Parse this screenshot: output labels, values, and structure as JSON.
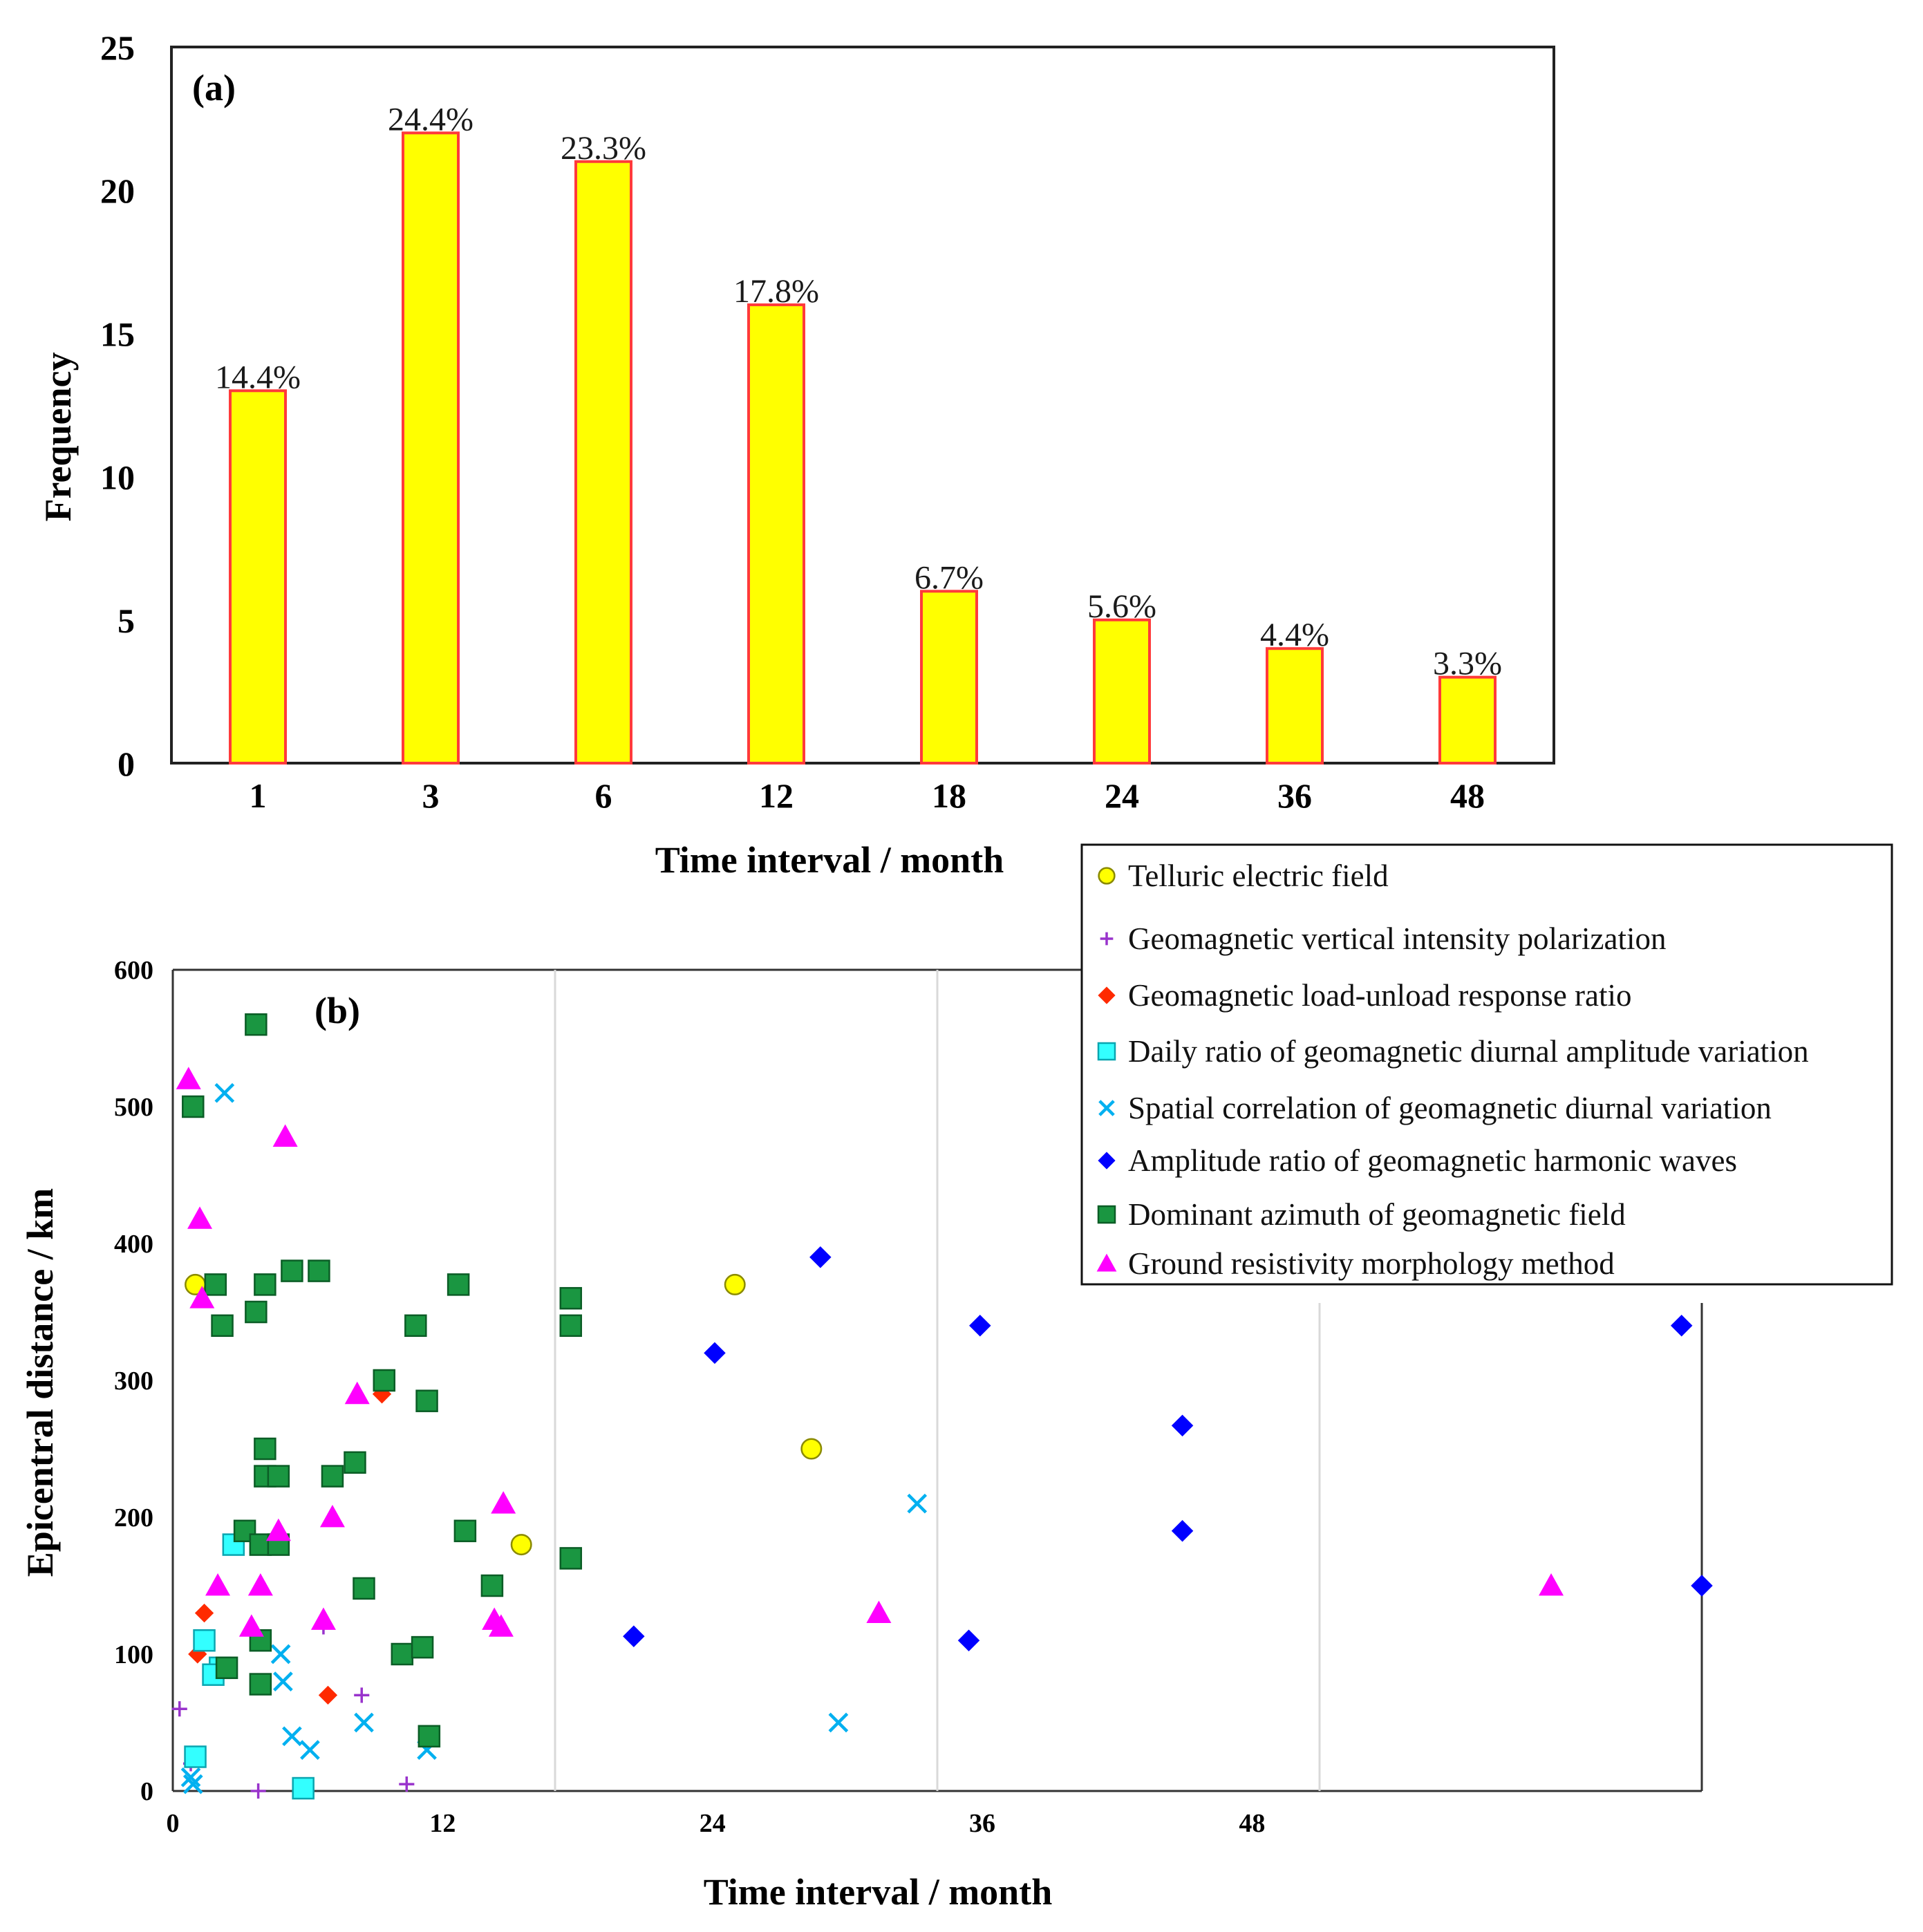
{
  "chart_data": [
    {
      "type": "bar",
      "panel_label": "(a)",
      "categories": [
        "1",
        "3",
        "6",
        "12",
        "18",
        "24",
        "36",
        "48"
      ],
      "values": [
        13,
        22,
        21,
        16,
        6,
        5,
        4,
        3
      ],
      "data_labels": [
        "14.4%",
        "24.4%",
        "23.3%",
        "17.8%",
        "6.7%",
        "5.6%",
        "4.4%",
        "3.3%"
      ],
      "xlabel": "Time interval / month",
      "ylabel": "Frequency",
      "ylim": [
        0,
        25
      ],
      "yticks": [
        "0",
        "5",
        "10",
        "15",
        "20",
        "25"
      ],
      "bar_fill": "#ffff00",
      "bar_edge": "#ff3a3a",
      "grid": false
    },
    {
      "type": "scatter",
      "panel_label": "(b)",
      "xlabel": "Time interval / month",
      "ylabel": "Epicentral distance / km",
      "xlim": [
        0,
        68
      ],
      "ylim": [
        0,
        600
      ],
      "xticks": [
        "0",
        "12",
        "24",
        "36",
        "48"
      ],
      "yticks": [
        "0",
        "100",
        "200",
        "300",
        "400",
        "500",
        "600"
      ],
      "vertical_gridlines_x": [
        17,
        34,
        51
      ],
      "legend_position": "top-right",
      "series": [
        {
          "name": "Telluric electric field",
          "marker": "circle",
          "color": "#ffff00",
          "points": [
            [
              1,
              370
            ],
            [
              25,
              370
            ],
            [
              28.4,
              250
            ],
            [
              15.5,
              180
            ]
          ]
        },
        {
          "name": "Geomagnetic vertical intensity polarization",
          "marker": "plus",
          "color": "#9933cc",
          "points": [
            [
              0.3,
              60
            ],
            [
              0.8,
              20
            ],
            [
              8.4,
              70
            ],
            [
              3.8,
              0
            ],
            [
              10.4,
              5
            ],
            [
              6.7,
              120
            ]
          ]
        },
        {
          "name": "Geomagnetic load-unload response ratio",
          "marker": "diamond",
          "color": "#ff2a00",
          "points": [
            [
              1.4,
              130
            ],
            [
              1.1,
              100
            ],
            [
              6.9,
              70
            ],
            [
              9.3,
              290
            ]
          ]
        },
        {
          "name": "Daily ratio of geomagnetic diurnal amplitude variation",
          "marker": "square",
          "color": "#33ffff",
          "points": [
            [
              1,
              25
            ],
            [
              1.4,
              110
            ],
            [
              2.1,
              90
            ],
            [
              1.8,
              85
            ],
            [
              2.7,
              180
            ],
            [
              5.8,
              2
            ]
          ]
        },
        {
          "name": "Spatial correlation of geomagnetic diurnal variation",
          "marker": "x",
          "color": "#00b0f0",
          "points": [
            [
              2.3,
              510
            ],
            [
              0.8,
              10
            ],
            [
              0.9,
              5
            ],
            [
              4.8,
              100
            ],
            [
              4.9,
              80
            ],
            [
              5.3,
              40
            ],
            [
              6.1,
              30
            ],
            [
              8.5,
              50
            ],
            [
              11.3,
              30
            ],
            [
              33.1,
              210
            ],
            [
              29.6,
              50
            ]
          ]
        },
        {
          "name": "Amplitude ratio of geomagnetic harmonic waves",
          "marker": "diamond",
          "color": "#0000ff",
          "points": [
            [
              28.8,
              390
            ],
            [
              24.1,
              320
            ],
            [
              35.9,
              340
            ],
            [
              44.9,
              267
            ],
            [
              44.9,
              190
            ],
            [
              35.4,
              110
            ],
            [
              20.5,
              113
            ],
            [
              67.1,
              340
            ],
            [
              68,
              150
            ]
          ]
        },
        {
          "name": "Dominant azimuth of geomagnetic field",
          "marker": "square",
          "color": "#1a9641",
          "points": [
            [
              3.7,
              560
            ],
            [
              0.9,
              500
            ],
            [
              1.9,
              370
            ],
            [
              4.1,
              370
            ],
            [
              5.3,
              380
            ],
            [
              6.5,
              380
            ],
            [
              3.7,
              350
            ],
            [
              2.2,
              340
            ],
            [
              17.7,
              360
            ],
            [
              17.7,
              340
            ],
            [
              10.8,
              340
            ],
            [
              12.7,
              370
            ],
            [
              11.3,
              285
            ],
            [
              9.4,
              300
            ],
            [
              4.1,
              250
            ],
            [
              4.1,
              230
            ],
            [
              4.7,
              230
            ],
            [
              7.1,
              230
            ],
            [
              8.1,
              240
            ],
            [
              3.2,
              190
            ],
            [
              3.9,
              180
            ],
            [
              4.7,
              180
            ],
            [
              13,
              190
            ],
            [
              8.5,
              148
            ],
            [
              14.2,
              150
            ],
            [
              17.7,
              170
            ],
            [
              3.9,
              110
            ],
            [
              2.4,
              90
            ],
            [
              3.9,
              78
            ],
            [
              10.2,
              100
            ],
            [
              11.1,
              105
            ],
            [
              11.4,
              40
            ]
          ]
        },
        {
          "name": "Ground resistivity morphology method",
          "marker": "triangle",
          "color": "#ff00ff",
          "points": [
            [
              0.7,
              520
            ],
            [
              5,
              478
            ],
            [
              1.2,
              418
            ],
            [
              1.3,
              360
            ],
            [
              8.2,
              290
            ],
            [
              7.1,
              200
            ],
            [
              4.7,
              190
            ],
            [
              14.7,
              210
            ],
            [
              2,
              150
            ],
            [
              3.9,
              150
            ],
            [
              3.5,
              120
            ],
            [
              6.7,
              125
            ],
            [
              14.3,
              125
            ],
            [
              14.6,
              120
            ],
            [
              31.4,
              130
            ],
            [
              61.3,
              150
            ]
          ]
        }
      ]
    }
  ]
}
